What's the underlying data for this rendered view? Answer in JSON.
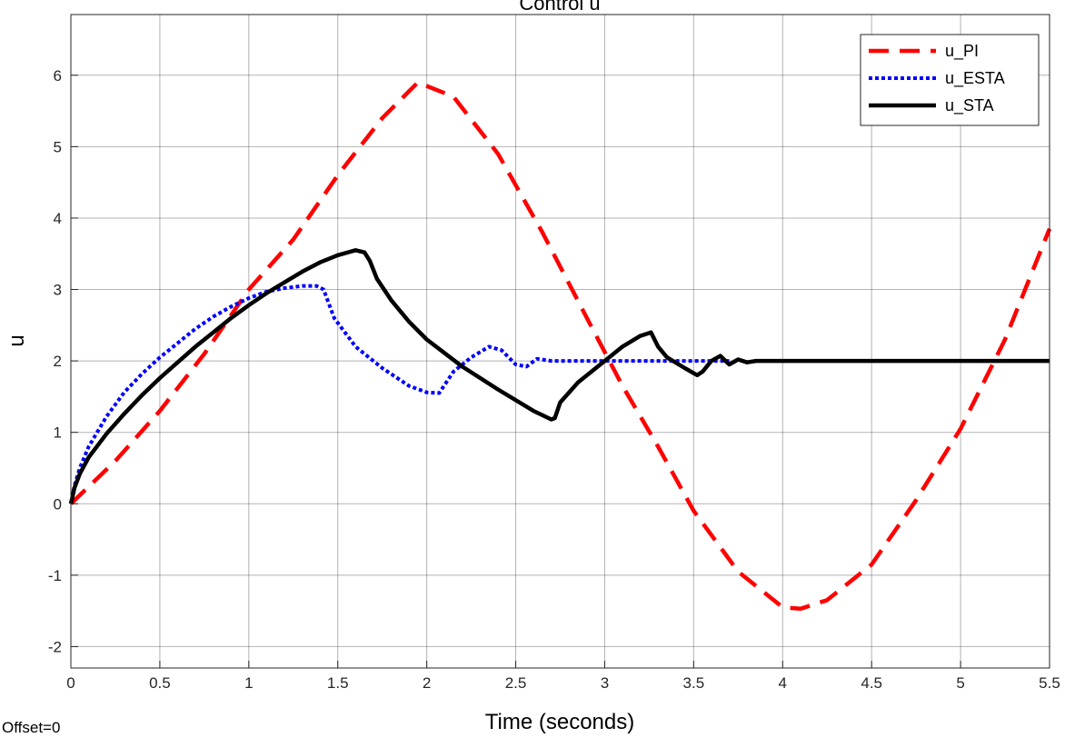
{
  "chart_data": {
    "type": "line",
    "title": "Control u",
    "xlabel": "Time (seconds)",
    "ylabel": "u",
    "xlim": [
      0,
      5.5
    ],
    "ylim": [
      -2.3,
      6.85
    ],
    "xticks": [
      0,
      0.5,
      1,
      1.5,
      2,
      2.5,
      3,
      3.5,
      4,
      4.5,
      5,
      5.5
    ],
    "yticks": [
      -2,
      -1,
      0,
      1,
      2,
      3,
      4,
      5,
      6
    ],
    "grid": true,
    "legend_position": "top-right",
    "footnote": "Offset=0",
    "series": [
      {
        "name": "u_PI",
        "color": "#ff0000",
        "style": "dashed",
        "x": [
          0,
          0.25,
          0.5,
          0.75,
          1.0,
          1.25,
          1.5,
          1.75,
          1.95,
          2.15,
          2.4,
          2.65,
          2.9,
          3.1,
          3.3,
          3.5,
          3.75,
          4.0,
          4.1,
          4.25,
          4.5,
          4.75,
          5.0,
          5.25,
          5.5
        ],
        "y": [
          0,
          0.6,
          1.3,
          2.1,
          3.0,
          3.7,
          4.6,
          5.4,
          5.9,
          5.7,
          4.9,
          3.8,
          2.6,
          1.65,
          0.8,
          -0.1,
          -0.95,
          -1.45,
          -1.47,
          -1.35,
          -0.85,
          0.05,
          1.05,
          2.3,
          3.85
        ]
      },
      {
        "name": "u_ESTA",
        "color": "#0000ff",
        "style": "dotted",
        "x": [
          0,
          0.02,
          0.05,
          0.1,
          0.2,
          0.3,
          0.4,
          0.5,
          0.6,
          0.7,
          0.8,
          0.9,
          1.0,
          1.1,
          1.2,
          1.3,
          1.38,
          1.42,
          1.48,
          1.6,
          1.75,
          1.9,
          2.0,
          2.07,
          2.15,
          2.25,
          2.35,
          2.42,
          2.5,
          2.56,
          2.62,
          2.7,
          2.8,
          3.0,
          3.5,
          3.7
        ],
        "y": [
          0,
          0.25,
          0.5,
          0.8,
          1.22,
          1.56,
          1.82,
          2.05,
          2.25,
          2.45,
          2.62,
          2.76,
          2.88,
          2.97,
          3.02,
          3.05,
          3.05,
          3.0,
          2.6,
          2.2,
          1.9,
          1.65,
          1.56,
          1.55,
          1.85,
          2.05,
          2.2,
          2.15,
          1.95,
          1.92,
          2.03,
          2.0,
          2.0,
          2.0,
          2.0,
          2.0
        ]
      },
      {
        "name": "u_STA",
        "color": "#000000",
        "style": "solid",
        "x": [
          0,
          0.02,
          0.05,
          0.1,
          0.2,
          0.3,
          0.4,
          0.5,
          0.6,
          0.7,
          0.8,
          0.9,
          1.0,
          1.1,
          1.2,
          1.3,
          1.4,
          1.5,
          1.6,
          1.65,
          1.68,
          1.72,
          1.8,
          1.9,
          2.0,
          2.2,
          2.4,
          2.6,
          2.7,
          2.72,
          2.75,
          2.85,
          3.0,
          3.1,
          3.2,
          3.26,
          3.3,
          3.35,
          3.45,
          3.52,
          3.55,
          3.6,
          3.65,
          3.7,
          3.75,
          3.8,
          3.85,
          4.0,
          5.5
        ],
        "y": [
          0,
          0.22,
          0.42,
          0.65,
          0.98,
          1.26,
          1.52,
          1.76,
          1.98,
          2.2,
          2.4,
          2.6,
          2.78,
          2.95,
          3.1,
          3.25,
          3.38,
          3.48,
          3.55,
          3.52,
          3.4,
          3.15,
          2.85,
          2.55,
          2.3,
          1.92,
          1.6,
          1.3,
          1.18,
          1.2,
          1.42,
          1.7,
          2.0,
          2.2,
          2.35,
          2.4,
          2.2,
          2.05,
          1.9,
          1.8,
          1.85,
          2.0,
          2.07,
          1.95,
          2.02,
          1.98,
          2.0,
          2.0,
          2.0
        ]
      }
    ]
  }
}
